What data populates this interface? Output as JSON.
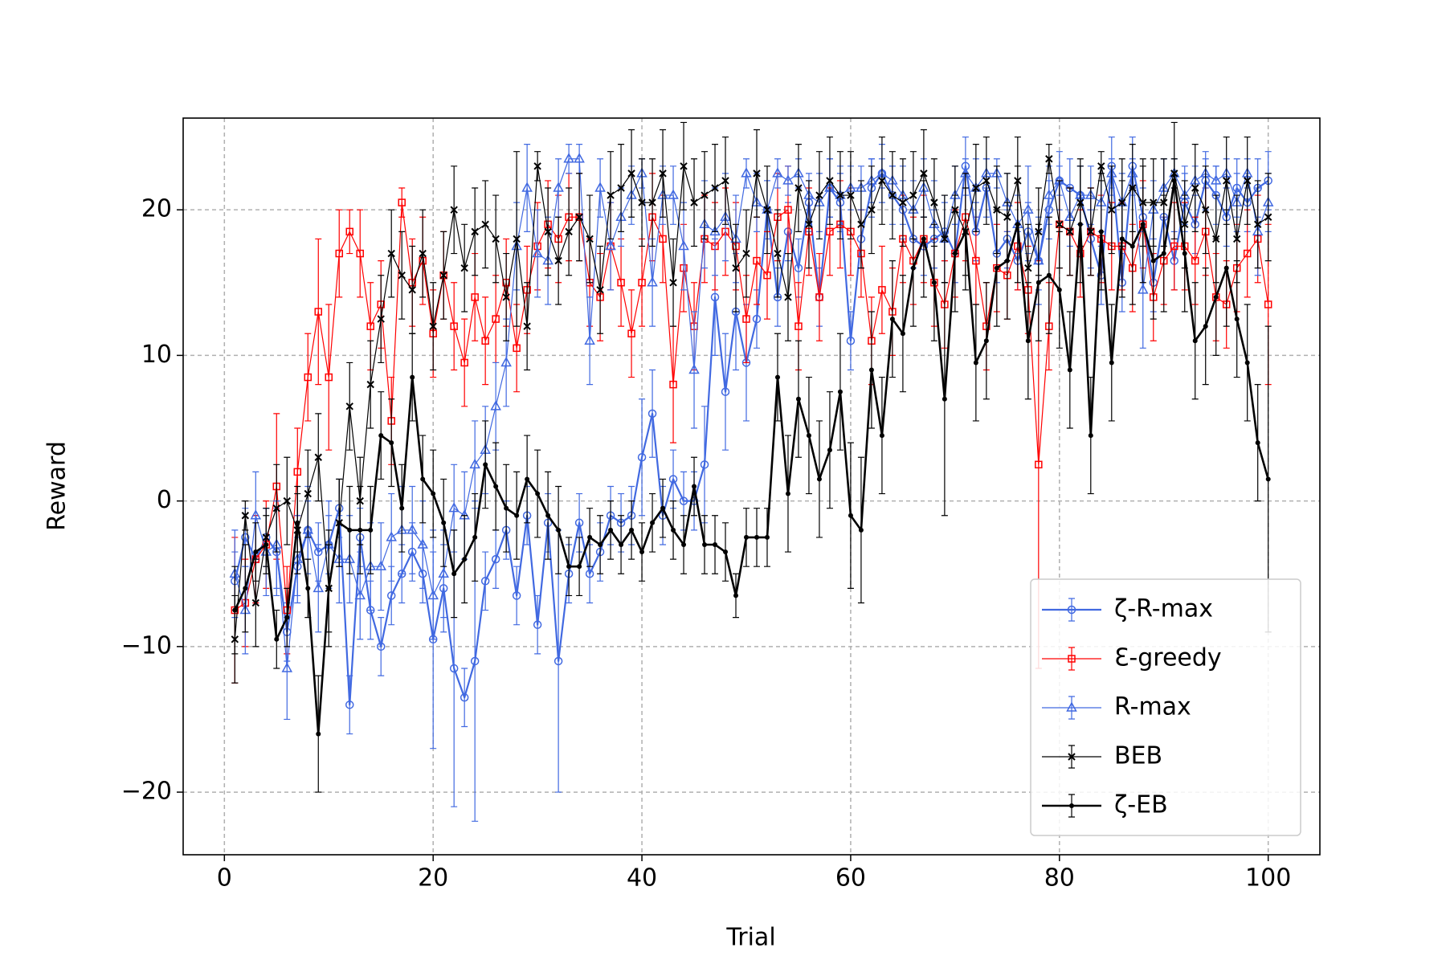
{
  "chart_data": {
    "type": "line",
    "x_label": "Trial",
    "y_label": "Reward",
    "x": [
      1,
      2,
      3,
      4,
      5,
      6,
      7,
      8,
      9,
      10,
      11,
      12,
      13,
      14,
      15,
      16,
      17,
      18,
      19,
      20,
      21,
      22,
      23,
      24,
      25,
      26,
      27,
      28,
      29,
      30,
      31,
      32,
      33,
      34,
      35,
      36,
      37,
      38,
      39,
      40,
      41,
      42,
      43,
      44,
      45,
      46,
      47,
      48,
      49,
      50,
      51,
      52,
      53,
      54,
      55,
      56,
      57,
      58,
      59,
      60,
      61,
      62,
      63,
      64,
      65,
      66,
      67,
      68,
      69,
      70,
      71,
      72,
      73,
      74,
      75,
      76,
      77,
      78,
      79,
      80,
      81,
      82,
      83,
      84,
      85,
      86,
      87,
      88,
      89,
      90,
      91,
      92,
      93,
      94,
      95,
      96,
      97,
      98,
      99,
      100
    ],
    "xlim": [
      -3.95,
      104.95
    ],
    "ylim": [
      -24.3,
      26.3
    ],
    "xticks": [
      0,
      20,
      40,
      60,
      80,
      100
    ],
    "yticks": [
      {
        "value": -20,
        "label": "−20"
      },
      {
        "value": -10,
        "label": "−10"
      },
      0,
      10,
      20
    ],
    "grid": true,
    "legend_loc": "lower right",
    "series": [
      {
        "name": "ζ-R-max",
        "color": "#4169e1",
        "marker": "circle",
        "linewidth": 2.2,
        "values": [
          -5.5,
          -2.5,
          -4,
          -2.5,
          -3.5,
          -9,
          -4.5,
          -2,
          -3.5,
          -3,
          -0.5,
          -14,
          -2.5,
          -7.5,
          -10,
          -6.5,
          -5,
          -3.5,
          -5,
          -9.5,
          -6,
          -11.5,
          -13.5,
          -11,
          -5.5,
          -4,
          -2,
          -6.5,
          -1,
          -8.5,
          -1.5,
          -11,
          -5,
          -1.5,
          -5,
          -3.5,
          -1,
          -1.5,
          -1,
          3,
          6,
          -1,
          1.5,
          0,
          0,
          2.5,
          14,
          7.5,
          13,
          9.5,
          12.5,
          20,
          14,
          18.5,
          16,
          20.5,
          14,
          21.5,
          20.5,
          11,
          18,
          21.5,
          22.5,
          21,
          20,
          18,
          17.5,
          18,
          18.5,
          17,
          23,
          18.5,
          21.5,
          17,
          18,
          16.5,
          18.5,
          16.5,
          20,
          22,
          21.5,
          21,
          18,
          15.5,
          23,
          15,
          23,
          19.5,
          15,
          19.5,
          16.5,
          20.5,
          19,
          22,
          21,
          19.5,
          21.5,
          20.5,
          21.5,
          22
        ],
        "errors": [
          2,
          2,
          3,
          2,
          3,
          2,
          2,
          2,
          2,
          2,
          2,
          2,
          2,
          2,
          2,
          2,
          2,
          2,
          2,
          7.5,
          3,
          9.5,
          2,
          11,
          2,
          2,
          2,
          2,
          2,
          2,
          2,
          9,
          2,
          2,
          2,
          2,
          2,
          2,
          2,
          4,
          3,
          2,
          2,
          2,
          2,
          4,
          4,
          4,
          4,
          4,
          2,
          2,
          2,
          2,
          2,
          2,
          2,
          2,
          2,
          2,
          2,
          2,
          2,
          2,
          2,
          2,
          2,
          2,
          2,
          2,
          2,
          2,
          2,
          2,
          2,
          2,
          2,
          2,
          2,
          2,
          2,
          2,
          2,
          2,
          2,
          2,
          2,
          2,
          2,
          2,
          2,
          2,
          2,
          2,
          2,
          2,
          2,
          2,
          2,
          2
        ]
      },
      {
        "name": "Ɛ-greedy",
        "color": "#ff0000",
        "marker": "square",
        "linewidth": 1.2,
        "values": [
          -7.5,
          -7,
          -4,
          -3,
          1,
          -7.5,
          2,
          8.5,
          13,
          8.5,
          17,
          18.5,
          17,
          12,
          13.5,
          5.5,
          20.5,
          15,
          16.5,
          11.5,
          15.5,
          12,
          9.5,
          14,
          11,
          12.5,
          15,
          10.5,
          14.5,
          17.5,
          19,
          18,
          19.5,
          19.5,
          15,
          14,
          17.5,
          15,
          11.5,
          15,
          19.5,
          18,
          8,
          16,
          12,
          18,
          17.5,
          18.5,
          17.5,
          12.5,
          16.5,
          15.5,
          19.5,
          20,
          12,
          18.5,
          14,
          18.5,
          19,
          18.5,
          17,
          11,
          14.5,
          13,
          18,
          16.5,
          18,
          15,
          13.5,
          17,
          19.5,
          16.5,
          12,
          16,
          15.5,
          17.5,
          14.5,
          2.5,
          12,
          19,
          18.5,
          17,
          18.5,
          18,
          17.5,
          17.5,
          16,
          19,
          14,
          16.5,
          17.5,
          17.5,
          16.5,
          18.5,
          14,
          13.5,
          16,
          17,
          18,
          13.5
        ],
        "errors": [
          5,
          3,
          3,
          3,
          5,
          3,
          3,
          3,
          5,
          5,
          3,
          1.5,
          3,
          3,
          3,
          3,
          1,
          3,
          3,
          3,
          3,
          3,
          3,
          3,
          3,
          3,
          3,
          3,
          3,
          3,
          3,
          3,
          3,
          3,
          3,
          3,
          3,
          3,
          3,
          3,
          3,
          3,
          4,
          3,
          3,
          3,
          3,
          3,
          3,
          3,
          3,
          3,
          3,
          3,
          3,
          3,
          3,
          3,
          3,
          3,
          3,
          3,
          3,
          3,
          3,
          3,
          3,
          3,
          3,
          3,
          3,
          3,
          3,
          3,
          3,
          3,
          3,
          14,
          3,
          3,
          3,
          3,
          3,
          3,
          3,
          3,
          3,
          3,
          3,
          3,
          3,
          3,
          3,
          3,
          3,
          3,
          3,
          3,
          3,
          5.5
        ]
      },
      {
        "name": "R-max",
        "color": "#4169e1",
        "marker": "triangle",
        "linewidth": 1.2,
        "values": [
          -5,
          -7.5,
          -1,
          -3.5,
          -3,
          -11.5,
          -4,
          -2,
          -6,
          -3,
          -4,
          -4,
          -6.5,
          -4.5,
          -4.5,
          -2.5,
          -2,
          -2,
          -3,
          -6.5,
          -5,
          -0.5,
          -1,
          2.5,
          3.5,
          6.5,
          9.5,
          17.5,
          21.5,
          17,
          16.5,
          21.5,
          23.5,
          23.5,
          11,
          21.5,
          17.5,
          19.5,
          21,
          22.5,
          15,
          21,
          21,
          17.5,
          9,
          19,
          18.5,
          19.5,
          18,
          22.5,
          20.5,
          20,
          22.5,
          22,
          22.5,
          21,
          20.5,
          21.5,
          21,
          21.5,
          21.5,
          22,
          22.5,
          22,
          21,
          20,
          21.5,
          19,
          18,
          21,
          22.5,
          21.5,
          22.5,
          22.5,
          20.5,
          19,
          20,
          16.5,
          21,
          22,
          19.5,
          21,
          21,
          20.5,
          22.5,
          20.5,
          22.5,
          14.5,
          20,
          21.5,
          22.5,
          21,
          22,
          22.5,
          22,
          22.5,
          20.5,
          22.5,
          18.5,
          20.5
        ],
        "errors": [
          3,
          3,
          3,
          3,
          3,
          3.5,
          3,
          3,
          3,
          3,
          3,
          3,
          3,
          3,
          3,
          3,
          3,
          3,
          3,
          3,
          3,
          3,
          3,
          3,
          3,
          3,
          3,
          3,
          3,
          3,
          3,
          2,
          1,
          1,
          3,
          2,
          3,
          2,
          2,
          1,
          3,
          2,
          2,
          3,
          4,
          3,
          3,
          3,
          3,
          1,
          2,
          2,
          1,
          1,
          1,
          1,
          2,
          2,
          2,
          1.5,
          1.5,
          1.5,
          1,
          1,
          2,
          2,
          2,
          3,
          3,
          2,
          1,
          2,
          1,
          1,
          2,
          2,
          3,
          3,
          2,
          1,
          2,
          2,
          2,
          2,
          1,
          2,
          1,
          4,
          2,
          2,
          1,
          2,
          1,
          1,
          1,
          1,
          2,
          1,
          3,
          2
        ]
      },
      {
        "name": "BEB",
        "color": "#000000",
        "marker": "x",
        "linewidth": 1.2,
        "values": [
          -9.5,
          -1,
          -7,
          -2.5,
          -0.5,
          0,
          -2,
          0.5,
          3,
          -6,
          -1.5,
          6.5,
          0,
          8,
          12.5,
          17,
          15.5,
          14.5,
          17,
          12,
          15.5,
          20,
          16,
          18.5,
          19,
          18,
          14,
          18,
          12,
          23,
          18.5,
          16.5,
          18.5,
          19.5,
          18,
          14.5,
          21,
          21.5,
          22.5,
          20.5,
          20.5,
          22.5,
          15,
          23,
          20.5,
          21,
          21.5,
          22,
          16,
          17,
          22.5,
          20,
          17,
          14,
          21.5,
          19,
          21,
          22,
          21,
          21,
          19,
          20,
          22,
          21,
          20.5,
          21,
          22.5,
          20.5,
          18,
          20,
          18.5,
          21.5,
          22,
          20,
          19.5,
          22,
          16,
          18.5,
          23.5,
          19,
          18.5,
          20.5,
          18.5,
          23,
          20,
          20.5,
          21.5,
          20.5,
          20.5,
          20.5,
          22.5,
          19,
          21.5,
          20,
          18,
          22,
          18,
          22,
          19,
          19.5
        ],
        "errors": [
          3,
          1,
          3,
          2,
          3,
          3,
          3,
          3,
          3,
          3,
          3,
          3,
          3,
          3,
          3,
          3,
          3,
          3,
          3,
          3,
          3,
          3,
          3,
          3,
          3,
          3,
          3,
          6,
          3,
          1,
          3,
          3,
          3,
          3,
          3,
          3,
          3,
          3,
          3,
          3,
          3,
          3,
          3,
          3,
          3,
          3,
          3,
          3,
          3,
          3,
          3,
          3,
          3,
          3,
          3,
          3,
          3,
          3,
          3,
          3,
          3,
          3,
          3,
          3,
          3,
          3,
          3,
          3,
          3,
          3,
          3,
          3,
          3,
          3,
          3,
          3,
          3,
          3,
          1,
          3,
          3,
          3,
          3,
          1,
          3,
          3,
          3,
          3,
          3,
          3,
          1,
          3,
          3,
          3,
          3,
          3,
          3,
          3,
          3,
          3
        ]
      },
      {
        "name": "ζ-EB",
        "color": "#000000",
        "marker": "dot",
        "linewidth": 2.6,
        "values": [
          -7.5,
          -6,
          -3.5,
          -3,
          -9.5,
          -8,
          -1.5,
          -6,
          -16,
          -6,
          -1.5,
          -2,
          -2,
          -2,
          4.5,
          4,
          -0.5,
          8.5,
          1.5,
          0.5,
          -1.5,
          -5,
          -4,
          -2.5,
          2.5,
          1,
          -0.5,
          -1,
          1.5,
          0.5,
          -1,
          -2,
          -4.5,
          -4.5,
          -2.5,
          -3,
          -2,
          -3,
          -2,
          -3.5,
          -1.5,
          -0.5,
          -2,
          -3,
          1,
          -3,
          -3,
          -3.5,
          -6.5,
          -2.5,
          -2.5,
          -2.5,
          8.5,
          0.5,
          7,
          4.5,
          1.5,
          3.5,
          7.5,
          -1,
          -2,
          9,
          4.5,
          12.5,
          11.5,
          16,
          18,
          15,
          7,
          17,
          18.5,
          9.5,
          11,
          16,
          16.5,
          19,
          11,
          15,
          15.5,
          14.5,
          9,
          19,
          4.5,
          18.5,
          9.5,
          18,
          17.5,
          19,
          16.5,
          17,
          22,
          17,
          11,
          12,
          14,
          16,
          12.5,
          9.5,
          4,
          1.5
        ],
        "errors": [
          3,
          3,
          2,
          2,
          2,
          2,
          2,
          2,
          4,
          4,
          3,
          3,
          3,
          3,
          3,
          3,
          3,
          3,
          3,
          3,
          3,
          3,
          3,
          3,
          3,
          3,
          3,
          3,
          3,
          3,
          3,
          3,
          2,
          2,
          2,
          2,
          2,
          2,
          2,
          2,
          2,
          2,
          2,
          2,
          2,
          2,
          2,
          2,
          1.5,
          2,
          2,
          2,
          3,
          4,
          4,
          4,
          4,
          4,
          4,
          5,
          5,
          4,
          4,
          4,
          4,
          4,
          4,
          4,
          8,
          4,
          4,
          4,
          4,
          4,
          4,
          4,
          4,
          4,
          4,
          4,
          4,
          4,
          4,
          4,
          4,
          4,
          4,
          4,
          4,
          4,
          4,
          4,
          4,
          4,
          4,
          4,
          4,
          4,
          4,
          10.5
        ]
      }
    ]
  }
}
